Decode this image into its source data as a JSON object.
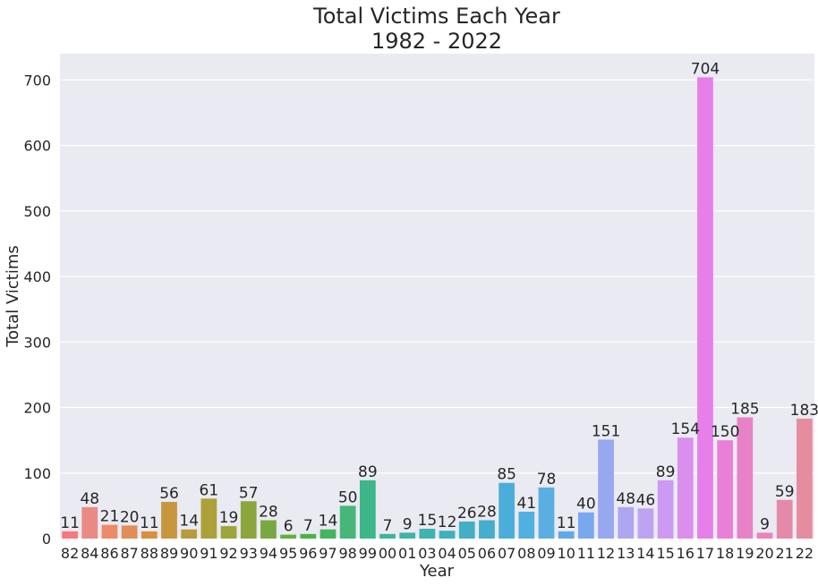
{
  "chart_data": {
    "type": "bar",
    "title_line1": "Total Victims Each Year",
    "title_line2": "1982 - 2022",
    "xlabel": "Year",
    "ylabel": "Total Victims",
    "ylim": [
      0,
      740
    ],
    "yticks": [
      0,
      100,
      200,
      300,
      400,
      500,
      600,
      700
    ],
    "grid": true,
    "background": "#eaeaf2",
    "categories": [
      "82",
      "84",
      "86",
      "87",
      "88",
      "89",
      "90",
      "91",
      "92",
      "93",
      "94",
      "95",
      "96",
      "97",
      "98",
      "99",
      "00",
      "01",
      "03",
      "04",
      "05",
      "06",
      "07",
      "08",
      "09",
      "10",
      "11",
      "12",
      "13",
      "14",
      "15",
      "16",
      "17",
      "18",
      "19",
      "20",
      "21",
      "22"
    ],
    "values": [
      11,
      48,
      21,
      20,
      11,
      56,
      14,
      61,
      19,
      57,
      28,
      6,
      7,
      14,
      50,
      89,
      7,
      9,
      15,
      12,
      26,
      28,
      85,
      41,
      78,
      11,
      40,
      151,
      48,
      46,
      89,
      154,
      704,
      150,
      185,
      9,
      59,
      183
    ],
    "colors": [
      "#f7797b",
      "#ea8a84",
      "#ec8b69",
      "#e08e55",
      "#d6913f",
      "#c8963c",
      "#b99b3b",
      "#aca138",
      "#9da53b",
      "#8ca63d",
      "#7aa840",
      "#66ad41",
      "#4cb247",
      "#44b460",
      "#46b679",
      "#3db68a",
      "#3ab699",
      "#3bb6a7",
      "#3fb3b2",
      "#3db1bc",
      "#43afc5",
      "#45adcf",
      "#4baeda",
      "#50b0e0",
      "#5aaee0",
      "#62a9e7",
      "#7aa8ee",
      "#97a8f0",
      "#aea6f0",
      "#bea3f3",
      "#cc9af2",
      "#da8eed",
      "#e67fea",
      "#ea7fd8",
      "#e882c7",
      "#e985b8",
      "#e589a8",
      "#e58c9e"
    ]
  }
}
